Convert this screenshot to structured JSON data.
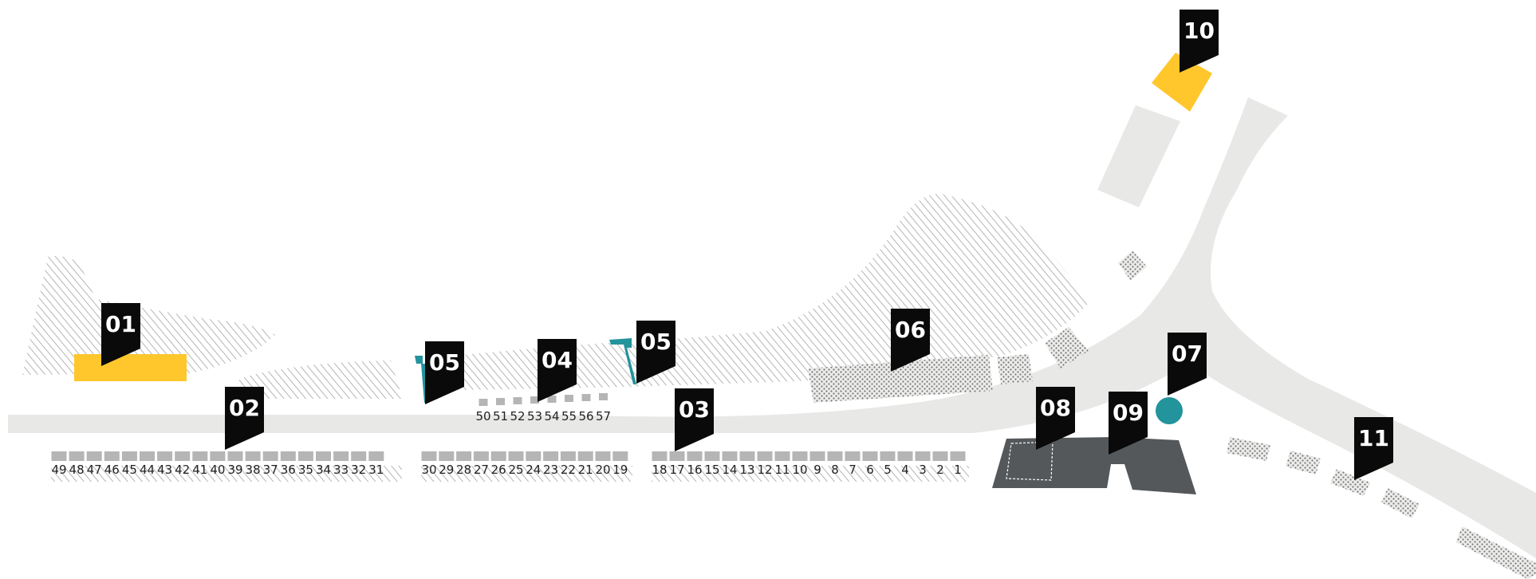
{
  "colors": {
    "road": "#e8e8e7",
    "hatch": "#9a9a9a",
    "dots": "#8a8a8a",
    "yellow": "#ffc72c",
    "teal": "#23939c",
    "building": "#55585b",
    "marker": "#0a0a0a",
    "slot": "#b5b5b5"
  },
  "markers": [
    {
      "id": "01",
      "label": "01"
    },
    {
      "id": "02",
      "label": "02"
    },
    {
      "id": "03",
      "label": "03"
    },
    {
      "id": "04",
      "label": "04"
    },
    {
      "id": "05a",
      "label": "05"
    },
    {
      "id": "05b",
      "label": "05"
    },
    {
      "id": "06",
      "label": "06"
    },
    {
      "id": "07",
      "label": "07"
    },
    {
      "id": "08",
      "label": "08"
    },
    {
      "id": "09",
      "label": "09"
    },
    {
      "id": "10",
      "label": "10"
    },
    {
      "id": "11",
      "label": "11"
    }
  ],
  "slot_rows": {
    "row1": [
      "49",
      "48",
      "47",
      "46",
      "45",
      "44",
      "43",
      "42",
      "41",
      "40",
      "39",
      "38",
      "37",
      "36",
      "35",
      "34",
      "33",
      "32",
      "31"
    ],
    "row2": [
      "30",
      "29",
      "28",
      "27",
      "26",
      "25",
      "24",
      "23",
      "22",
      "21",
      "20",
      "19"
    ],
    "row3": [
      "18",
      "17",
      "16",
      "15",
      "14",
      "13",
      "12",
      "11",
      "10",
      "9",
      "8",
      "7",
      "6",
      "5",
      "4",
      "3",
      "2",
      "1"
    ],
    "upper": [
      "50",
      "51",
      "52",
      "53",
      "54",
      "55",
      "56",
      "57"
    ]
  }
}
